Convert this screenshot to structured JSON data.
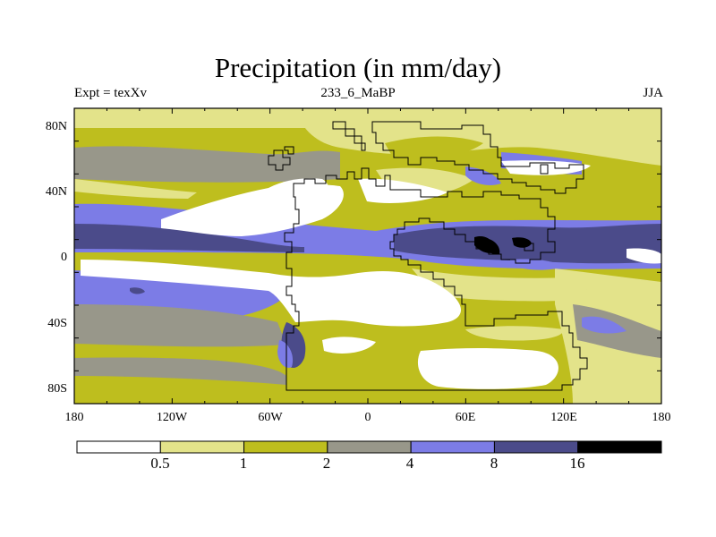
{
  "title": "Precipitation (in mm/day)",
  "left_label": "Expt = texXv",
  "center_label": "233_6_MaBP",
  "right_label": "JJA",
  "x_ticks": [
    "180",
    "120W",
    "60W",
    "0",
    "60E",
    "120E",
    "180"
  ],
  "y_ticks": [
    "80N",
    "40N",
    "0",
    "40S",
    "80S"
  ],
  "colorbar": {
    "colors": [
      "#ffffff",
      "#e3e38a",
      "#bebe1e",
      "#98978a",
      "#7c7ce6",
      "#4b4b8a",
      "#000000"
    ],
    "labels": [
      "0.5",
      "1",
      "2",
      "4",
      "8",
      "16"
    ]
  },
  "colors": {
    "white": "#ffffff",
    "pale_yellow": "#e3e38a",
    "olive": "#bebe1e",
    "gray": "#98978a",
    "blue": "#7c7ce6",
    "navy": "#4b4b8a",
    "black": "#000000"
  }
}
